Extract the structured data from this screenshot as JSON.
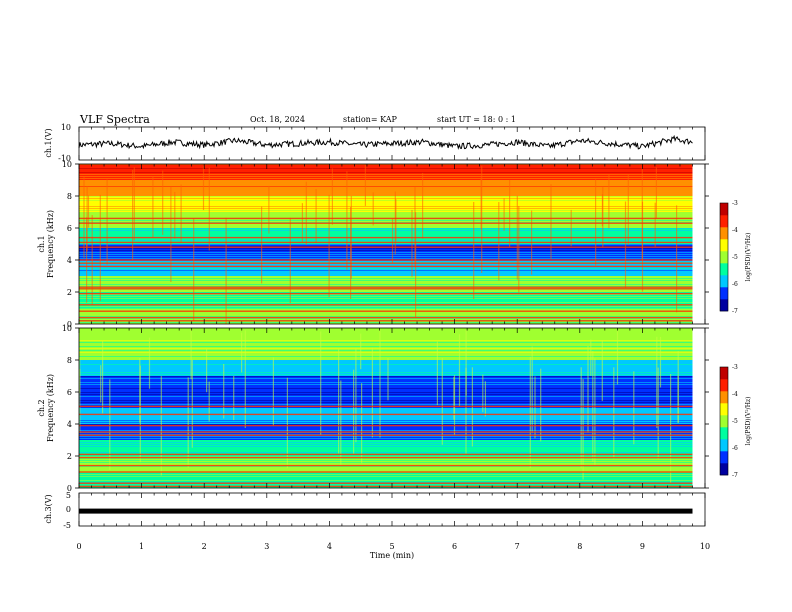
{
  "header": {
    "title": "VLF Spectra",
    "date": "Oct. 18, 2024",
    "station": "station= KAP",
    "start": "start  UT =   18: 0  : 1"
  },
  "chart_data": [
    {
      "type": "line",
      "name": "ch1-waveform",
      "ylabel": "ch.1(V)",
      "ylim": [
        -10,
        10
      ],
      "yticks": [
        "10",
        "-10"
      ],
      "xlim": [
        0,
        10
      ],
      "x": [
        0,
        0.5,
        1,
        1.5,
        2,
        2.5,
        3,
        3.5,
        4,
        4.5,
        5,
        5.5,
        6,
        6.5,
        7,
        7.5,
        8,
        8.5,
        9,
        9.5,
        9.8
      ],
      "y": [
        -1,
        0,
        -2,
        1,
        -1,
        2,
        -1,
        0,
        1,
        -1,
        0,
        1,
        -2,
        -1,
        1,
        -2,
        2,
        0,
        -2,
        3,
        1
      ]
    },
    {
      "type": "heatmap",
      "name": "ch1-spectrogram",
      "ylabel_top": "ch.1",
      "ylabel": "Frequency (kHz)",
      "ylim": [
        0,
        10
      ],
      "yticks": [
        "0",
        "2",
        "4",
        "6",
        "8",
        "10"
      ],
      "xlim": [
        0,
        9.8
      ],
      "freq_bands_khz": [
        0.5,
        1.5,
        2.5,
        3.5,
        4.5,
        5.5,
        6.5,
        7.5,
        8.5,
        9.5
      ],
      "log_psd": [
        -5.2,
        -5.3,
        -5.1,
        -5.8,
        -6.3,
        -5.6,
        -5.2,
        -4.6,
        -4.1,
        -3.7
      ],
      "lines_khz": [
        0.2,
        0.4,
        0.8,
        1.2,
        1.9,
        2.2,
        2.3,
        3.6,
        3.8,
        4.0,
        4.8,
        5.1,
        5.4,
        6.3,
        6.6
      ],
      "colorbar": {
        "label": "log(PSD)(V²/Hz)",
        "range": [
          -7,
          -3
        ],
        "ticks": [
          "-3",
          "-4",
          "-5",
          "-6",
          "-7"
        ]
      }
    },
    {
      "type": "heatmap",
      "name": "ch2-spectrogram",
      "ylabel_top": "ch.2",
      "ylabel": "Frequency (kHz)",
      "ylim": [
        0,
        10
      ],
      "yticks": [
        "0",
        "2",
        "4",
        "6",
        "8",
        "10"
      ],
      "xlim": [
        0,
        9.8
      ],
      "freq_bands_khz": [
        0.5,
        1.5,
        2.5,
        3.5,
        4.5,
        5.5,
        6.5,
        7.5,
        8.5,
        9.5
      ],
      "log_psd": [
        -5.3,
        -5.2,
        -5.6,
        -6.3,
        -6.1,
        -6.3,
        -6.2,
        -5.7,
        -5.1,
        -5.0
      ],
      "lines_khz": [
        0.1,
        0.3,
        1.0,
        1.4,
        1.9,
        2.1,
        3.3,
        3.5,
        3.9,
        4.6,
        5.1
      ],
      "colorbar": {
        "label": "log(PSD)(V²/Hz)",
        "range": [
          -7,
          -3
        ],
        "ticks": [
          "-3",
          "-4",
          "-5",
          "-6",
          "-7"
        ]
      }
    },
    {
      "type": "line",
      "name": "ch3-waveform",
      "ylabel": "ch.3(V)",
      "ylim": [
        -5,
        5
      ],
      "yticks": [
        "5",
        "0",
        "-5"
      ],
      "xlim": [
        0,
        10
      ],
      "x": [
        0,
        9.8
      ],
      "y": [
        -0.5,
        -0.5
      ]
    }
  ],
  "xaxis": {
    "label": "Time (min)",
    "ticks": [
      "0",
      "1",
      "2",
      "3",
      "4",
      "5",
      "6",
      "7",
      "8",
      "9",
      "10"
    ]
  },
  "colors": {
    "colormap": [
      "#0000a0",
      "#0030ff",
      "#00c8ff",
      "#00ffa0",
      "#a0ff30",
      "#ffff00",
      "#ff9000",
      "#ff2000",
      "#c00000"
    ]
  }
}
